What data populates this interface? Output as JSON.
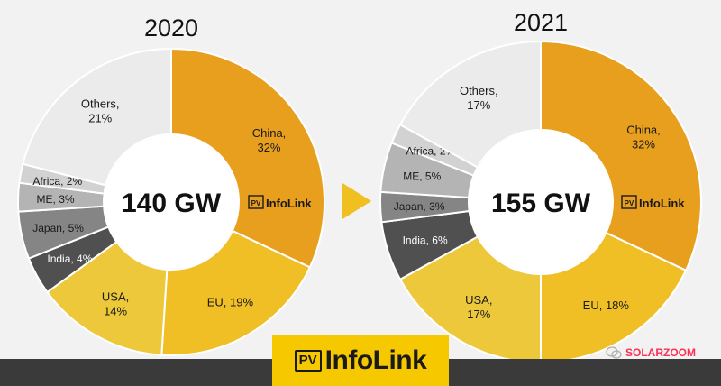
{
  "colors": {
    "China": "#e89f1e",
    "EU": "#f0bf25",
    "USA": "#ecc83a",
    "India": "#505050",
    "Japan": "#858585",
    "ME": "#b4b4b4",
    "Africa": "#d2d2d2",
    "Others": "#ebebeb",
    "background": "#f2f2f2",
    "arrow": "#f0c020"
  },
  "chart_data": [
    {
      "type": "pie",
      "variant": "donut",
      "title": "2020",
      "center_label": "140 GW",
      "brand_label": "InfoLink",
      "brand_badge": "PV",
      "slices": [
        {
          "name": "China",
          "value": 32,
          "label_line1": "China,",
          "label_line2": "32%"
        },
        {
          "name": "EU",
          "value": 19,
          "label_line1": "EU, 19%",
          "label_line2": ""
        },
        {
          "name": "USA",
          "value": 14,
          "label_line1": "USA,",
          "label_line2": "14%"
        },
        {
          "name": "India",
          "value": 4,
          "label_line1": "India, 4%",
          "label_line2": ""
        },
        {
          "name": "Japan",
          "value": 5,
          "label_line1": "Japan, 5%",
          "label_line2": ""
        },
        {
          "name": "ME",
          "value": 3,
          "label_line1": "ME, 3%",
          "label_line2": ""
        },
        {
          "name": "Africa",
          "value": 2,
          "label_line1": "Africa, 2%",
          "label_line2": ""
        },
        {
          "name": "Others",
          "value": 21,
          "label_line1": "Others,",
          "label_line2": "21%"
        }
      ]
    },
    {
      "type": "pie",
      "variant": "donut",
      "title": "2021",
      "center_label": "155 GW",
      "brand_label": "InfoLink",
      "brand_badge": "PV",
      "slices": [
        {
          "name": "China",
          "value": 32,
          "label_line1": "China,",
          "label_line2": "32%"
        },
        {
          "name": "EU",
          "value": 18,
          "label_line1": "EU, 18%",
          "label_line2": ""
        },
        {
          "name": "USA",
          "value": 17,
          "label_line1": "USA,",
          "label_line2": "17%"
        },
        {
          "name": "India",
          "value": 6,
          "label_line1": "India, 6%",
          "label_line2": ""
        },
        {
          "name": "Japan",
          "value": 3,
          "label_line1": "Japan, 3%",
          "label_line2": ""
        },
        {
          "name": "ME",
          "value": 5,
          "label_line1": "ME, 5%",
          "label_line2": ""
        },
        {
          "name": "Africa",
          "value": 2,
          "label_line1": "Africa, 2%",
          "label_line2": ""
        },
        {
          "name": "Others",
          "value": 17,
          "label_line1": "Others,",
          "label_line2": "17%"
        }
      ]
    }
  ],
  "footer": {
    "logo_badge": "PV",
    "logo_text": "InfoLink",
    "watermark": "SOLARZOOM"
  }
}
